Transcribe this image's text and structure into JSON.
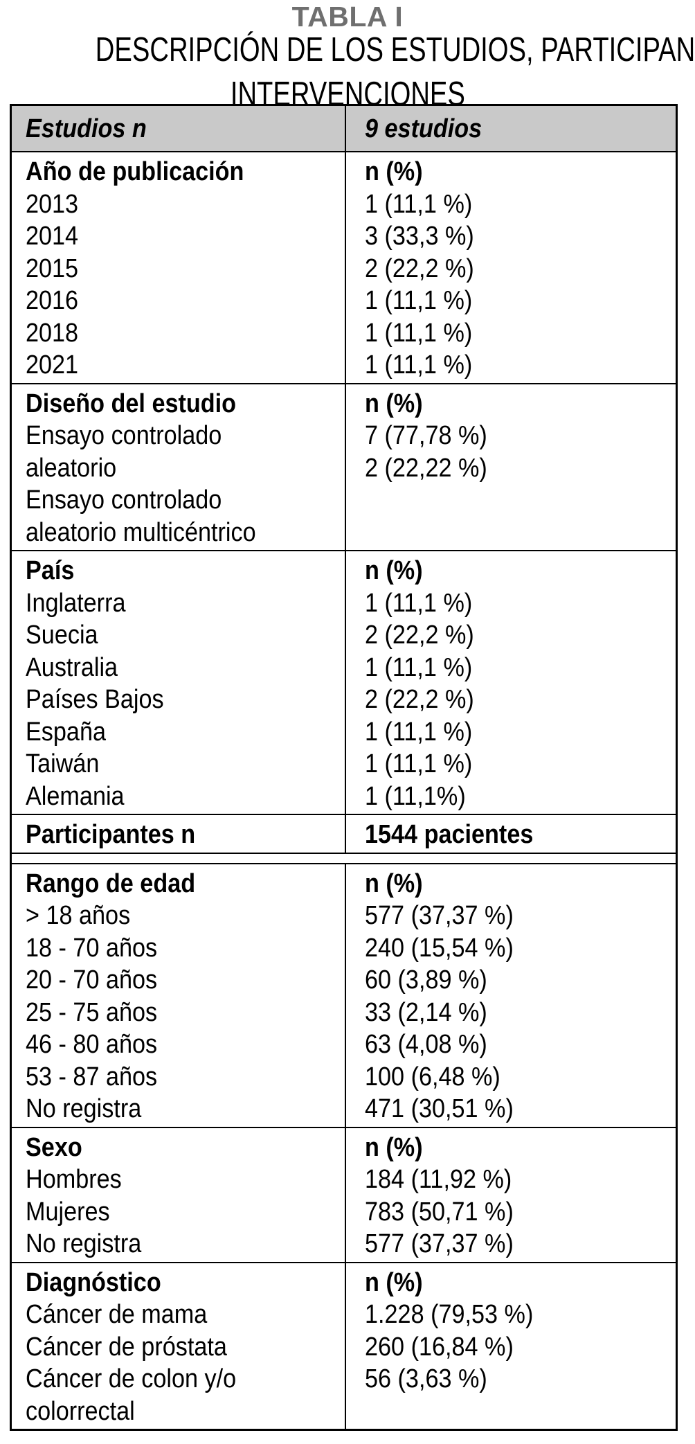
{
  "title": "TABLA I",
  "subtitle_lines": [
    "DESCRIPCIÓN DE LOS ESTUDIOS, PARTICIPANTES E",
    "INTERVENCIONES"
  ],
  "colors": {
    "title_gray": "#6f6f6f",
    "header_background": "#c9c9c9",
    "border": "#000000"
  },
  "table": {
    "header": {
      "left": "Estudios n",
      "right": "9 estudios"
    },
    "sections": [
      {
        "id": "ano-de-publicacion",
        "left": [
          "Año de publicación",
          "2013",
          "2014",
          "2015",
          "2016",
          "2018",
          "2021"
        ],
        "right": [
          "n (%)",
          "1 (11,1 %)",
          "3 (33,3 %)",
          "2 (22,2 %)",
          "1 (11,1 %)",
          "1 (11,1 %)",
          "1 (11,1 %)"
        ]
      },
      {
        "id": "diseno-del-estudio",
        "left": [
          "Diseño del estudio",
          "Ensayo controlado",
          "aleatorio",
          "Ensayo controlado",
          "aleatorio multicéntrico"
        ],
        "right": [
          "n (%)",
          "7 (77,78 %)",
          "2 (22,22 %)"
        ]
      },
      {
        "id": "pais",
        "left": [
          "País",
          "Inglaterra",
          "Suecia",
          "Australia",
          "Países Bajos",
          "España",
          "Taiwán",
          "Alemania"
        ],
        "right": [
          "n (%)",
          "1 (11,1 %)",
          "2 (22,2 %)",
          "1 (11,1 %)",
          "2 (22,2 %)",
          "1 (11,1 %)",
          "1 (11,1 %)",
          "1 (11,1%)"
        ]
      },
      {
        "id": "participantes",
        "left": [
          "Participantes n"
        ],
        "right": [
          "1544 pacientes"
        ]
      },
      {
        "id": "rango-de-edad",
        "left": [
          "Rango de edad",
          "> 18 años",
          "18 - 70 años",
          "20 - 70 años",
          "25 - 75 años",
          "46 - 80 años",
          "53 - 87 años",
          "No registra"
        ],
        "right": [
          "n (%)",
          "577 (37,37 %)",
          "240 (15,54 %)",
          "60 (3,89 %)",
          "33 (2,14 %)",
          "63 (4,08 %)",
          "100 (6,48 %)",
          "471 (30,51 %)"
        ]
      },
      {
        "id": "sexo",
        "left": [
          "Sexo",
          "Hombres",
          "Mujeres",
          "No registra"
        ],
        "right": [
          "n (%)",
          "184 (11,92 %)",
          "783 (50,71 %)",
          "577 (37,37 %)"
        ]
      },
      {
        "id": "diagnostico",
        "left": [
          "Diagnóstico",
          "Cáncer de mama",
          "Cáncer de próstata",
          "Cáncer de colon y/o",
          "colorrectal"
        ],
        "right": [
          "n (%)",
          "1.228 (79,53 %)",
          "260 (16,84 %)",
          "56 (3,63 %)"
        ]
      }
    ]
  }
}
